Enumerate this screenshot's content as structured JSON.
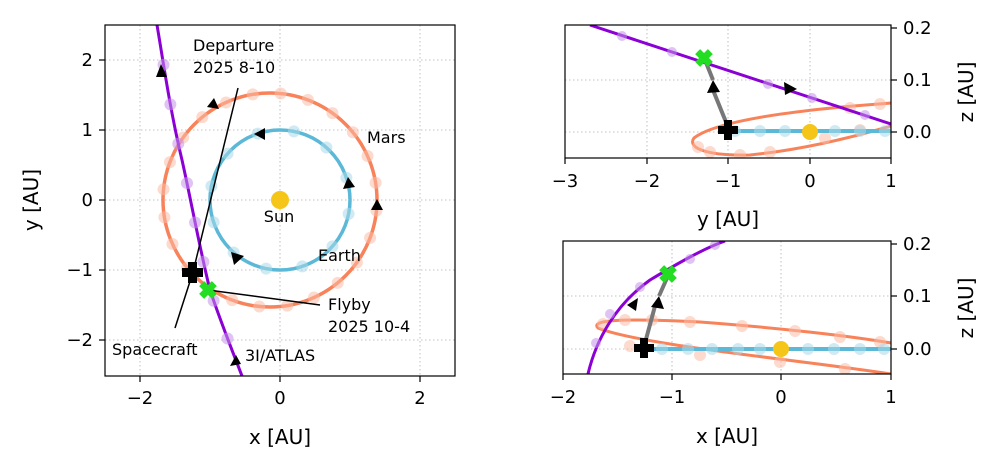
{
  "colors": {
    "earth": "#5bb8d6",
    "earth_marker": "#a9d8ea",
    "mars": "#f8825a",
    "mars_marker": "#fbbba5",
    "atlas": "#8b00d4",
    "atlas_marker": "#c592ea",
    "sun": "#f5c518",
    "spacecraft": "#000000",
    "flyby": "#22dd22",
    "transfer": "#777777"
  },
  "chart_data": [
    {
      "type": "line",
      "panel": "xy",
      "xlabel": "x [AU]",
      "ylabel": "y [AU]",
      "xlim": [
        -2.5,
        2.5
      ],
      "ylim": [
        -2.5,
        2.5
      ],
      "xticks": [
        -2,
        0,
        2
      ],
      "yticks": [
        -2,
        -1,
        0,
        1,
        2
      ],
      "grid": true,
      "series": [
        {
          "name": "Earth",
          "kind": "orbit",
          "a": 1.0
        },
        {
          "name": "Mars",
          "kind": "orbit",
          "a": 1.52,
          "cx": -0.14,
          "cy": 0.0
        },
        {
          "name": "3I/ATLAS",
          "kind": "trajectory",
          "x": [
            -1.75,
            -1.7,
            -1.6,
            -1.5,
            -1.4,
            -1.3,
            -1.2,
            -1.1,
            -1.0,
            -0.9,
            -0.8,
            -0.7,
            -0.6
          ],
          "y": [
            2.5,
            2.1,
            1.6,
            1.05,
            0.5,
            0.0,
            -0.55,
            -1.05,
            -1.4,
            -1.7,
            -2.0,
            -2.3,
            -2.55
          ]
        }
      ],
      "points": {
        "sun": [
          0,
          0
        ],
        "spacecraft": [
          -1.22,
          -0.98
        ],
        "flyby": [
          -1.03,
          -1.28
        ]
      },
      "annotations": {
        "sun": "Sun",
        "earth": "Earth",
        "mars": "Mars",
        "atlas": "3I/ATLAS",
        "spacecraft": "Spacecraft",
        "departure_line1": "Departure",
        "departure_line2": "2025 8-10",
        "flyby_line1": "Flyby",
        "flyby_line2": "2025 10-4"
      }
    },
    {
      "type": "line",
      "panel": "yz",
      "xlabel": "y [AU]",
      "ylabel": "z [AU]",
      "xlim": [
        -3,
        1
      ],
      "ylim": [
        -0.05,
        0.2
      ],
      "xticks": [
        -3,
        -2,
        -1,
        0,
        1
      ],
      "yticks": [
        0.0,
        0.1,
        0.2
      ],
      "grid": true,
      "points": {
        "sun": [
          0,
          0
        ],
        "spacecraft": [
          -1.0,
          0.005
        ],
        "flyby": [
          -1.33,
          0.142
        ]
      }
    },
    {
      "type": "line",
      "panel": "xz",
      "xlabel": "x [AU]",
      "ylabel": "z [AU]",
      "xlim": [
        -2,
        1
      ],
      "ylim": [
        -0.05,
        0.2
      ],
      "xticks": [
        -2,
        -1,
        0,
        1
      ],
      "yticks": [
        0.0,
        0.1,
        0.2
      ],
      "grid": true,
      "points": {
        "sun": [
          0,
          0
        ],
        "spacecraft": [
          -1.25,
          0.01
        ],
        "flyby": [
          -1.03,
          0.143
        ]
      }
    }
  ]
}
